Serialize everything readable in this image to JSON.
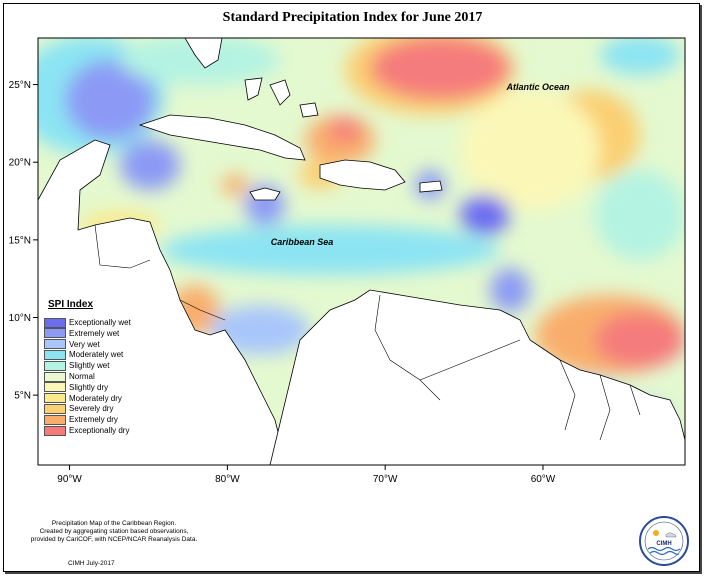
{
  "title": "Standard Precipitation Index for June 2017",
  "map": {
    "extent": {
      "lon": [
        -92,
        -51
      ],
      "lat": [
        0.5,
        28
      ]
    },
    "lon_ticks": [
      {
        "value": -90,
        "label": "90°W"
      },
      {
        "value": -80,
        "label": "80°W"
      },
      {
        "value": -70,
        "label": "70°W"
      },
      {
        "value": -60,
        "label": "60°W"
      }
    ],
    "lat_ticks": [
      {
        "value": 25,
        "label": "25°N"
      },
      {
        "value": 20,
        "label": "20°N"
      },
      {
        "value": 15,
        "label": "15°N"
      },
      {
        "value": 10,
        "label": "10°N"
      },
      {
        "value": 5,
        "label": "5°N"
      }
    ],
    "labels": {
      "atlantic": "Atlantic Ocean",
      "caribbean": "Caribbean Sea"
    }
  },
  "legend": {
    "title": "SPI Index",
    "items": [
      {
        "label": "Exceptionally wet",
        "color": "#6c6cf0"
      },
      {
        "label": "Extremely wet",
        "color": "#8c9af5"
      },
      {
        "label": "Very wet",
        "color": "#a9c6fb"
      },
      {
        "label": "Moderately wet",
        "color": "#8ce4f3"
      },
      {
        "label": "Slightly wet",
        "color": "#b4f3e2"
      },
      {
        "label": "Normal",
        "color": "#e9fad0"
      },
      {
        "label": "Slightly dry",
        "color": "#fbf8b7"
      },
      {
        "label": "Moderately dry",
        "color": "#fbe98c"
      },
      {
        "label": "Severely dry",
        "color": "#fbcf72"
      },
      {
        "label": "Extremely dry",
        "color": "#f9ad6c"
      },
      {
        "label": "Exceptionally dry",
        "color": "#f57b7b"
      }
    ]
  },
  "credit": {
    "line1": "Precipitation Map of the Caribbean Region.",
    "line2": "Created by aggregating station based observations,",
    "line3": "provided by CariCOF, with NCEP/NCAR Reanalysis Data.",
    "date": "CIMH July-2017"
  },
  "logo": {
    "text": "CIMH",
    "icon": "cimh-logo-icon"
  }
}
